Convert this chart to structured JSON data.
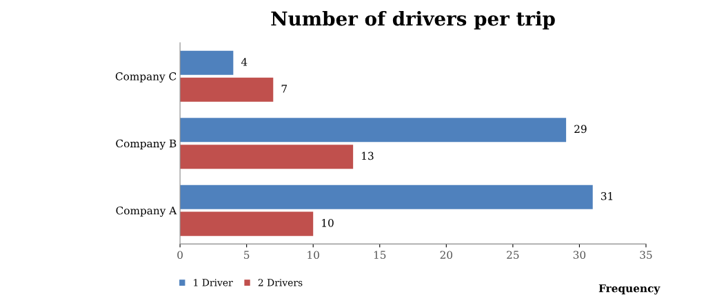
{
  "chart_data": {
    "type": "bar",
    "orientation": "horizontal",
    "title": "Number of drivers per trip",
    "xlabel": "Frequency",
    "categories": [
      "Company C",
      "Company B",
      "Company A"
    ],
    "series": [
      {
        "name": "1 Driver",
        "color": "#4f81bd",
        "values": [
          4,
          29,
          31
        ]
      },
      {
        "name": "2 Drivers",
        "color": "#c0504d",
        "values": [
          7,
          13,
          10
        ]
      }
    ],
    "xlim": [
      0,
      35
    ],
    "xticks": [
      0,
      5,
      10,
      15,
      20,
      25,
      30,
      35
    ],
    "grid": false,
    "legend": "bottom left",
    "data_labels": true
  }
}
